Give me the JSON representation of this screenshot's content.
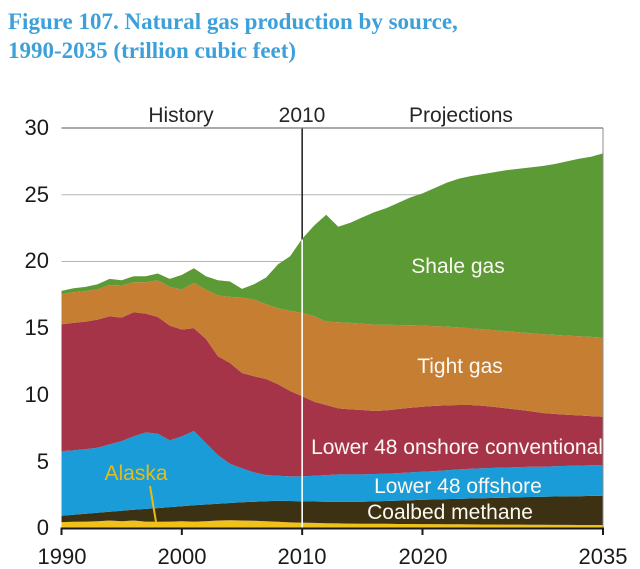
{
  "title": {
    "line1": "Figure 107. Natural gas production by source,",
    "line2": "1990-2035 (trillion cubic feet)",
    "color": "#3ea0d9"
  },
  "header": {
    "history": "History",
    "divider_year": "2010",
    "projections": "Projections"
  },
  "chart_data": {
    "type": "area",
    "stacked": true,
    "title": "Natural gas production by source, 1990-2035 (trillion cubic feet)",
    "xlabel": "",
    "ylabel": "trillion cubic feet",
    "ylim": [
      0,
      30
    ],
    "grid": true,
    "legend_position": "labels-inside-areas",
    "divider_year": 2010,
    "ytick_labels": [
      "30",
      "25",
      "20",
      "15",
      "10",
      "5",
      "0"
    ],
    "yticks": [
      30,
      25,
      20,
      15,
      10,
      5,
      0
    ],
    "xtick_labels": [
      "1990",
      "2000",
      "2010",
      "2020",
      "2035"
    ],
    "xtick_years": [
      1990,
      2000,
      2010,
      2020,
      2035
    ],
    "x": [
      1990,
      1991,
      1992,
      1993,
      1994,
      1995,
      1996,
      1997,
      1998,
      1999,
      2000,
      2001,
      2002,
      2003,
      2004,
      2005,
      2006,
      2007,
      2008,
      2009,
      2010,
      2011,
      2012,
      2013,
      2014,
      2015,
      2016,
      2017,
      2018,
      2019,
      2020,
      2021,
      2022,
      2023,
      2024,
      2025,
      2026,
      2027,
      2028,
      2029,
      2030,
      2031,
      2032,
      2033,
      2034,
      2035
    ],
    "series": [
      {
        "key": "alaska",
        "label": "Alaska",
        "color": "#f0c11a",
        "label_color": "#e7bc17",
        "values": [
          0.48,
          0.5,
          0.52,
          0.55,
          0.6,
          0.55,
          0.6,
          0.52,
          0.5,
          0.52,
          0.55,
          0.52,
          0.55,
          0.6,
          0.62,
          0.6,
          0.58,
          0.55,
          0.5,
          0.46,
          0.44,
          0.42,
          0.4,
          0.38,
          0.37,
          0.36,
          0.35,
          0.35,
          0.34,
          0.34,
          0.33,
          0.33,
          0.32,
          0.32,
          0.31,
          0.3,
          0.3,
          0.29,
          0.29,
          0.28,
          0.28,
          0.27,
          0.27,
          0.26,
          0.26,
          0.26
        ]
      },
      {
        "key": "coalbed-methane",
        "label": "Coalbed methane",
        "color": "#3d3114",
        "label_color": "#fbf9f2",
        "values": [
          0.47,
          0.53,
          0.58,
          0.63,
          0.66,
          0.78,
          0.8,
          0.95,
          1.03,
          1.08,
          1.11,
          1.22,
          1.25,
          1.26,
          1.29,
          1.36,
          1.42,
          1.49,
          1.58,
          1.6,
          1.59,
          1.6,
          1.61,
          1.62,
          1.63,
          1.64,
          1.68,
          1.71,
          1.75,
          1.78,
          1.82,
          1.84,
          1.88,
          1.9,
          1.94,
          1.97,
          1.99,
          2.02,
          2.05,
          2.08,
          2.1,
          2.13,
          2.14,
          2.16,
          2.18,
          2.19
        ]
      },
      {
        "key": "lower-48-offshore",
        "label": "Lower 48 offshore",
        "color": "#1a9cd8",
        "label_color": "#fbf9f2",
        "values": [
          4.85,
          4.82,
          4.85,
          4.87,
          5.04,
          5.22,
          5.5,
          5.73,
          5.57,
          5.0,
          5.24,
          5.56,
          4.6,
          3.64,
          2.94,
          2.54,
          2.2,
          1.96,
          1.87,
          1.84,
          1.87,
          1.93,
          1.99,
          2.05,
          2.05,
          2.05,
          2.05,
          2.04,
          2.06,
          2.08,
          2.1,
          2.13,
          2.16,
          2.2,
          2.22,
          2.24,
          2.25,
          2.26,
          2.26,
          2.26,
          2.25,
          2.26,
          2.28,
          2.29,
          2.3,
          2.31
        ]
      },
      {
        "key": "lower-48-onshore-conventional",
        "label": "Lower 48 onshore conventional",
        "color": "#a53449",
        "label_color": "#fbf9f2",
        "values": [
          9.5,
          9.55,
          9.55,
          9.6,
          9.6,
          9.25,
          9.3,
          8.9,
          8.75,
          8.6,
          8.0,
          7.7,
          7.8,
          7.4,
          7.55,
          7.15,
          7.2,
          7.2,
          6.85,
          6.4,
          6.0,
          5.55,
          5.25,
          4.95,
          4.87,
          4.83,
          4.72,
          4.75,
          4.8,
          4.85,
          4.87,
          4.88,
          4.86,
          4.83,
          4.78,
          4.69,
          4.56,
          4.43,
          4.3,
          4.16,
          4.02,
          3.92,
          3.83,
          3.76,
          3.68,
          3.61
        ]
      },
      {
        "key": "tight-gas",
        "label": "Tight gas",
        "color": "#c67e33",
        "label_color": "#fbf9f2",
        "values": [
          2.25,
          2.3,
          2.28,
          2.27,
          2.35,
          2.4,
          2.25,
          2.35,
          2.75,
          2.9,
          3.0,
          3.4,
          3.7,
          4.55,
          4.95,
          5.65,
          5.75,
          5.6,
          5.7,
          6.0,
          6.25,
          6.4,
          6.25,
          6.45,
          6.48,
          6.45,
          6.48,
          6.41,
          6.29,
          6.17,
          6.08,
          5.98,
          5.9,
          5.81,
          5.75,
          5.72,
          5.75,
          5.78,
          5.8,
          5.85,
          5.9,
          5.92,
          5.93,
          5.93,
          5.93,
          5.93
        ]
      },
      {
        "key": "shale-gas",
        "label": "Shale gas",
        "color": "#5c9a35",
        "label_color": "#fbf9f2",
        "values": [
          0.25,
          0.3,
          0.32,
          0.38,
          0.45,
          0.4,
          0.45,
          0.45,
          0.5,
          0.6,
          1.1,
          1.1,
          1.0,
          1.15,
          1.15,
          0.65,
          1.15,
          2.0,
          3.3,
          4.1,
          5.55,
          6.8,
          8.0,
          7.15,
          7.5,
          7.97,
          8.42,
          8.74,
          9.16,
          9.58,
          9.9,
          10.34,
          10.78,
          11.14,
          11.4,
          11.63,
          11.85,
          12.07,
          12.25,
          12.42,
          12.6,
          12.8,
          13.05,
          13.3,
          13.5,
          13.8
        ]
      }
    ]
  }
}
